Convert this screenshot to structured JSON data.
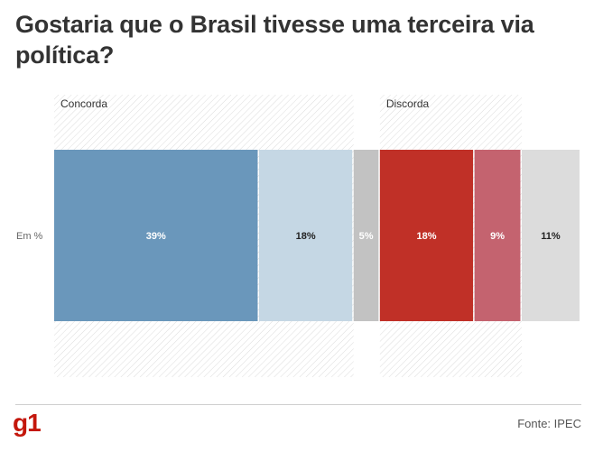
{
  "title": "Gostaria que o Brasil tivesse uma terceira via política?",
  "chart_data": {
    "type": "bar",
    "orientation": "horizontal",
    "stacked": true,
    "categories": [
      "Em %"
    ],
    "xlim": [
      0,
      100
    ],
    "groups": [
      {
        "label": "Concorda",
        "series": [
          0,
          1
        ]
      },
      {
        "label": "Discorda",
        "series": [
          3,
          4
        ]
      }
    ],
    "series": [
      {
        "values": [
          39
        ],
        "label": "39%",
        "color": "#6a97bb",
        "label_color": "#ffffff"
      },
      {
        "values": [
          18
        ],
        "label": "18%",
        "color": "#c5d7e4",
        "label_color": "#222222"
      },
      {
        "values": [
          5
        ],
        "label": "5%",
        "color": "#c2c2c2",
        "label_color": "#ffffff"
      },
      {
        "values": [
          18
        ],
        "label": "18%",
        "color": "#c03027",
        "label_color": "#ffffff"
      },
      {
        "values": [
          9
        ],
        "label": "9%",
        "color": "#c4636f",
        "label_color": "#ffffff"
      },
      {
        "values": [
          11
        ],
        "label": "11%",
        "color": "#dcdcdc",
        "label_color": "#222222"
      }
    ],
    "gridlines": false,
    "legend": "none"
  },
  "footer": {
    "logo": "g1",
    "source": "Fonte: IPEC"
  }
}
